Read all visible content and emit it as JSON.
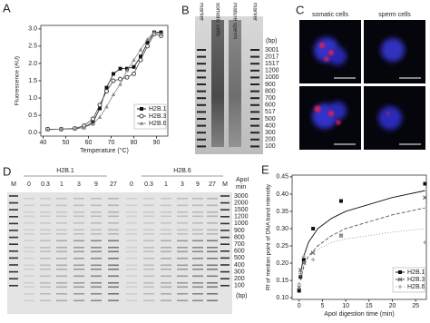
{
  "panel_labels": [
    "A",
    "B",
    "C",
    "D",
    "E"
  ],
  "chart_data": [
    {
      "type": "line",
      "x_label": "Temperature (°C)",
      "y_label": "Fluorescence (AU)",
      "x": [
        42,
        48,
        54,
        58,
        62,
        65,
        68,
        71,
        74,
        77,
        80,
        83,
        86,
        89,
        92
      ],
      "xlim": [
        39,
        95
      ],
      "xticks": [
        40,
        50,
        60,
        70,
        80,
        90
      ],
      "ylim": [
        -0.1,
        3.1
      ],
      "yticks": [
        {
          "value": 0,
          "label": "0.0"
        },
        {
          "value": 0.5,
          "label": "0.5"
        },
        {
          "value": 1,
          "label": "1.0"
        },
        {
          "value": 1.5,
          "label": "1.5"
        },
        {
          "value": 2,
          "label": "2.0"
        },
        {
          "value": 2.5,
          "label": "2.5"
        },
        {
          "value": 3,
          "label": "3.0"
        }
      ],
      "legend": "lower right",
      "series": [
        {
          "name": "H2B.1",
          "color": "#111111",
          "marker": "square",
          "values": [
            0.1,
            0.1,
            0.12,
            0.15,
            0.3,
            0.7,
            1.3,
            1.7,
            1.85,
            1.85,
            1.9,
            2.2,
            2.6,
            2.9,
            2.9
          ]
        },
        {
          "name": "H2B.3",
          "color": "#444444",
          "marker": "circle",
          "values": [
            0.1,
            0.1,
            0.12,
            0.2,
            0.4,
            0.8,
            1.2,
            1.5,
            1.55,
            1.6,
            1.7,
            2.1,
            2.5,
            2.85,
            2.8
          ]
        },
        {
          "name": "H2B.6",
          "color": "#888888",
          "marker": "triangle",
          "values": [
            0.08,
            0.1,
            0.1,
            0.15,
            0.25,
            0.45,
            0.75,
            1.1,
            1.4,
            1.8,
            2.1,
            2.4,
            2.7,
            2.9,
            2.85
          ]
        }
      ]
    },
    {
      "type": "scatter",
      "x_label": "ApoI digestion time (min)",
      "y_label": "Rf of median point of DNA band intensity",
      "x": [
        0,
        0.3,
        1,
        3,
        9,
        27
      ],
      "fit_x": [
        0.3,
        1,
        2,
        4,
        7,
        10,
        15,
        20,
        27
      ],
      "xlim": [
        -1.5,
        27.3
      ],
      "xticks": [
        0,
        5,
        10,
        15,
        20,
        25
      ],
      "ylim": [
        0.095,
        0.455
      ],
      "yticks": [
        {
          "value": 0.1,
          "label": "0.10"
        },
        {
          "value": 0.15,
          "label": "0.15"
        },
        {
          "value": 0.2,
          "label": "0.20"
        },
        {
          "value": 0.25,
          "label": "0.25"
        },
        {
          "value": 0.3,
          "label": "0.30"
        },
        {
          "value": 0.35,
          "label": "0.35"
        },
        {
          "value": 0.4,
          "label": "0.40"
        },
        {
          "value": 0.45,
          "label": "0.45"
        }
      ],
      "legend": "lower right",
      "series": [
        {
          "name": "H2B.1",
          "color": "#111111",
          "marker": "square",
          "dash": "none",
          "values": [
            0.12,
            0.16,
            0.21,
            0.3,
            0.38,
            0.43
          ],
          "fit": [
            0.17,
            0.22,
            0.26,
            0.3,
            0.33,
            0.35,
            0.37,
            0.39,
            0.41
          ]
        },
        {
          "name": "H2B.3",
          "color": "#555555",
          "marker": "x",
          "dash": "4 2",
          "values": [
            0.13,
            0.18,
            0.2,
            0.23,
            0.28,
            0.39
          ],
          "fit": [
            0.15,
            0.19,
            0.22,
            0.25,
            0.28,
            0.3,
            0.32,
            0.34,
            0.36
          ]
        },
        {
          "name": "H2B.6",
          "color": "#999999",
          "marker": "plus",
          "dash": "1 2",
          "values": [
            0.14,
            0.17,
            0.22,
            0.21,
            0.28,
            0.26
          ],
          "fit": [
            0.16,
            0.2,
            0.22,
            0.24,
            0.26,
            0.27,
            0.28,
            0.29,
            0.3
          ]
        }
      ]
    }
  ],
  "gel_b": {
    "lanes": [
      "marker",
      "somatic cells",
      "mature sperm",
      "marker"
    ],
    "unit": "(bp)",
    "sizes": [
      3001,
      2017,
      1517,
      1200,
      1000,
      900,
      800,
      700,
      600,
      517,
      500,
      400,
      300,
      200,
      100
    ]
  },
  "micrographs": {
    "columns": [
      "somatic cells",
      "sperm cells"
    ]
  },
  "gel_d": {
    "groups": [
      "H2B.1",
      "H2B.6"
    ],
    "marker": "M",
    "times": [
      0,
      0.3,
      1,
      3,
      9,
      27
    ],
    "enzyme": "ApoI",
    "time_unit": "min",
    "unit": "(bp)",
    "sizes": [
      3000,
      2000,
      1500,
      1200,
      1000,
      900,
      800,
      700,
      600,
      500,
      400,
      300,
      200,
      100
    ]
  }
}
